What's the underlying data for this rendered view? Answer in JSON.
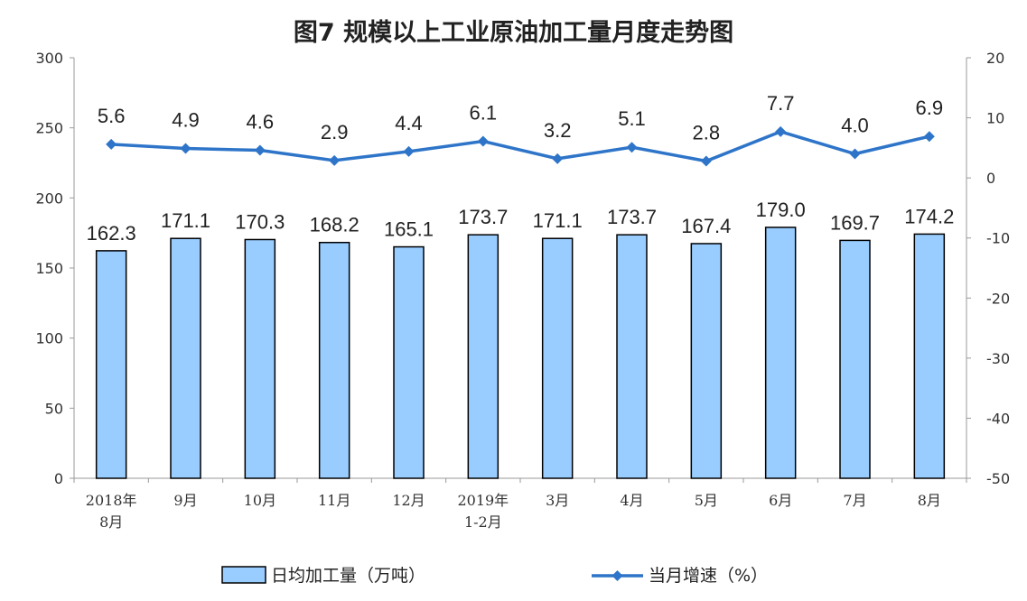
{
  "title": "图7  规模以上工业原油加工量月度走势图",
  "legend": {
    "bar_label": "日均加工量（万吨）",
    "line_label": "当月增速（%）"
  },
  "colors": {
    "bar_fill": "#99ccff",
    "bar_stroke": "#000000",
    "line": "#2e75c9",
    "axis": "#999999"
  },
  "chart_data": {
    "type": "bar",
    "title": "图7  规模以上工业原油加工量月度走势图",
    "categories": [
      [
        "2018年",
        "8月"
      ],
      [
        "9月"
      ],
      [
        "10月"
      ],
      [
        "11月"
      ],
      [
        "12月"
      ],
      [
        "2019年",
        "1-2月"
      ],
      [
        "3月"
      ],
      [
        "4月"
      ],
      [
        "5月"
      ],
      [
        "6月"
      ],
      [
        "7月"
      ],
      [
        "8月"
      ]
    ],
    "series": [
      {
        "name": "日均加工量（万吨）",
        "type": "bar",
        "axis": "left",
        "values": [
          162.3,
          171.1,
          170.3,
          168.2,
          165.1,
          173.7,
          171.1,
          173.7,
          167.4,
          179.0,
          169.7,
          174.2
        ],
        "labels": [
          "162.3",
          "171.1",
          "170.3",
          "168.2",
          "165.1",
          "173.7",
          "171.1",
          "173.7",
          "167.4",
          "179.0",
          "169.7",
          "174.2"
        ]
      },
      {
        "name": "当月增速（%）",
        "type": "line",
        "axis": "right",
        "values": [
          5.6,
          4.9,
          4.6,
          2.9,
          4.4,
          6.1,
          3.2,
          5.1,
          2.8,
          7.7,
          4.0,
          6.9
        ],
        "labels": [
          "5.6",
          "4.9",
          "4.6",
          "2.9",
          "4.4",
          "6.1",
          "3.2",
          "5.1",
          "2.8",
          "7.7",
          "4.0",
          "6.9"
        ]
      }
    ],
    "y_left": {
      "min": 0,
      "max": 300,
      "ticks": [
        "0",
        "50",
        "100",
        "150",
        "200",
        "250",
        "300"
      ]
    },
    "y_right": {
      "min": -50,
      "max": 20,
      "ticks": [
        "-50",
        "-40",
        "-30",
        "-20",
        "-10",
        "0",
        "10",
        "20"
      ]
    },
    "grid": false,
    "legend_position": "bottom"
  }
}
